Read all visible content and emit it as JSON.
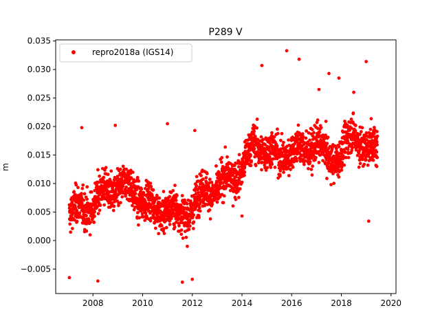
{
  "chart_data": {
    "type": "scatter",
    "title": "P289 V",
    "xlabel": "",
    "ylabel": "m",
    "xlim": [
      2006.5,
      2020.2
    ],
    "ylim": [
      -0.0093,
      0.0352
    ],
    "x_ticks": [
      2008,
      2010,
      2012,
      2014,
      2016,
      2018,
      2020
    ],
    "x_tick_labels": [
      "2008",
      "2010",
      "2012",
      "2014",
      "2016",
      "2018",
      "2020"
    ],
    "y_ticks": [
      -0.005,
      0.0,
      0.005,
      0.01,
      0.015,
      0.02,
      0.025,
      0.03,
      0.035
    ],
    "y_tick_labels": [
      "−0.005",
      "0.000",
      "0.005",
      "0.010",
      "0.015",
      "0.020",
      "0.025",
      "0.030",
      "0.035"
    ],
    "grid": false,
    "legend_position": "top-left",
    "series": [
      {
        "name": "repro2018a (IGS14)",
        "color": "#ff0000",
        "marker": "circle",
        "x_range": [
          2007.05,
          2019.45
        ],
        "profile": [
          [
            2007.05,
            0.0045
          ],
          [
            2007.5,
            0.0055
          ],
          [
            2008.0,
            0.0065
          ],
          [
            2008.5,
            0.0085
          ],
          [
            2009.0,
            0.0095
          ],
          [
            2009.5,
            0.009
          ],
          [
            2010.0,
            0.0075
          ],
          [
            2010.5,
            0.005
          ],
          [
            2011.0,
            0.006
          ],
          [
            2011.5,
            0.004
          ],
          [
            2012.0,
            0.006
          ],
          [
            2012.5,
            0.0085
          ],
          [
            2013.0,
            0.0095
          ],
          [
            2013.5,
            0.0105
          ],
          [
            2014.0,
            0.013
          ],
          [
            2014.5,
            0.0165
          ],
          [
            2015.0,
            0.0165
          ],
          [
            2015.5,
            0.014
          ],
          [
            2016.0,
            0.0165
          ],
          [
            2016.5,
            0.015
          ],
          [
            2017.0,
            0.018
          ],
          [
            2017.5,
            0.0135
          ],
          [
            2018.0,
            0.016
          ],
          [
            2018.5,
            0.018
          ],
          [
            2019.0,
            0.017
          ],
          [
            2019.45,
            0.015
          ]
        ],
        "notable_points": [
          [
            2007.05,
            -0.0065
          ],
          [
            2007.55,
            0.0198
          ],
          [
            2008.2,
            -0.0071
          ],
          [
            2008.9,
            0.0202
          ],
          [
            2011.0,
            0.0205
          ],
          [
            2011.6,
            -0.0073
          ],
          [
            2012.0,
            -0.0068
          ],
          [
            2012.1,
            0.0193
          ],
          [
            2014.0,
            0.0043
          ],
          [
            2014.8,
            0.0307
          ],
          [
            2015.8,
            0.0333
          ],
          [
            2016.3,
            0.0318
          ],
          [
            2017.1,
            0.0265
          ],
          [
            2017.5,
            0.0293
          ],
          [
            2017.9,
            0.0285
          ],
          [
            2018.5,
            0.026
          ],
          [
            2019.0,
            0.0314
          ],
          [
            2019.1,
            0.0034
          ]
        ]
      }
    ]
  }
}
